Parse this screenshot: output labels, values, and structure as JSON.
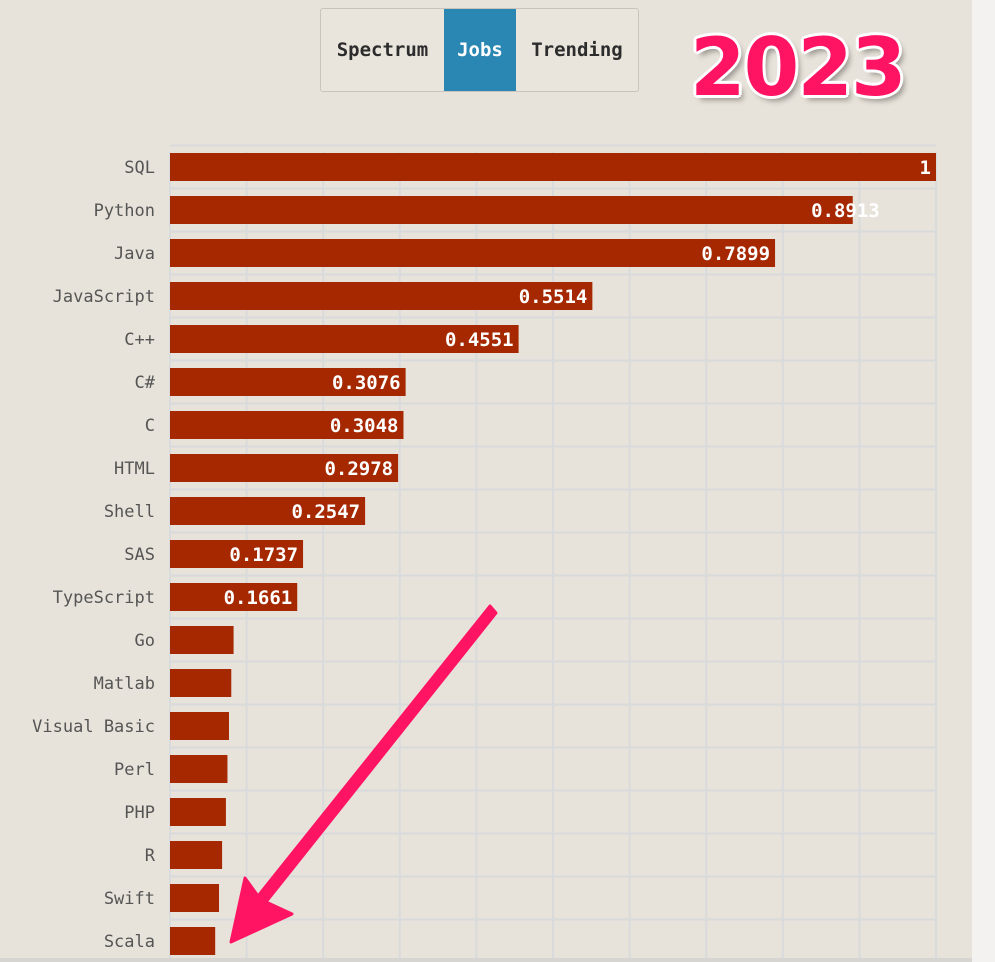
{
  "tabs": [
    {
      "label": "Spectrum",
      "active": false
    },
    {
      "label": "Jobs",
      "active": true
    },
    {
      "label": "Trending",
      "active": false
    }
  ],
  "year": "2023",
  "colors": {
    "bar": "#a52800",
    "background": "#e8e3da",
    "grid": "#d9dadc",
    "active_tab": "#2a86b2",
    "arrow": "#ff1464",
    "year_text": "#ff1464"
  },
  "chart_data": {
    "type": "bar",
    "orientation": "horizontal",
    "title": "",
    "xlabel": "",
    "ylabel": "",
    "xlim": [
      0,
      1
    ],
    "grid": true,
    "categories": [
      "SQL",
      "Python",
      "Java",
      "JavaScript",
      "C++",
      "C#",
      "C",
      "HTML",
      "Shell",
      "SAS",
      "TypeScript",
      "Go",
      "Matlab",
      "Visual Basic",
      "Perl",
      "PHP",
      "R",
      "Swift",
      "Scala"
    ],
    "values": [
      1,
      0.8913,
      0.7899,
      0.5514,
      0.4551,
      0.3076,
      0.3048,
      0.2978,
      0.2547,
      0.1737,
      0.1661,
      0.083,
      0.08,
      0.077,
      0.075,
      0.073,
      0.068,
      0.064,
      0.059
    ],
    "value_labels": [
      "1",
      "0.8913",
      "0.7899",
      "0.5514",
      "0.4551",
      "0.3076",
      "0.3048",
      "0.2978",
      "0.2547",
      "0.1737",
      "0.1661",
      "",
      "",
      "",
      "",
      "",
      "",
      "",
      ""
    ],
    "annotations": [
      {
        "type": "arrow",
        "points_to": "Scala"
      }
    ]
  }
}
